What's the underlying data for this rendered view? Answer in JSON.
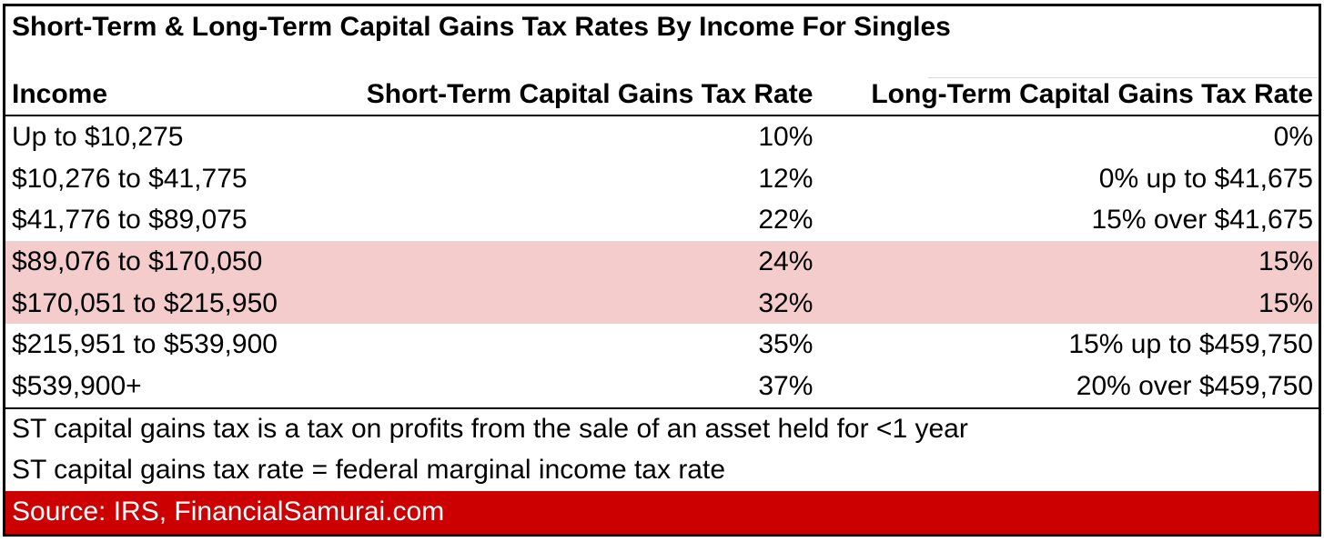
{
  "chart_data": {
    "type": "table",
    "title": "Short-Term & Long-Term Capital Gains Tax Rates By Income For Singles",
    "columns": [
      "Income",
      "Short-Term Capital Gains Tax Rate",
      "Long-Term Capital Gains Tax Rate"
    ],
    "rows": [
      [
        "Up to $10,275",
        "10%",
        "0%"
      ],
      [
        "$10,276 to $41,775",
        "12%",
        "0% up to $41,675"
      ],
      [
        "$41,776 to $89,075",
        "22%",
        "15% over $41,675"
      ],
      [
        "$89,076 to $170,050",
        "24%",
        "15%"
      ],
      [
        "$170,051 to $215,950",
        "32%",
        "15%"
      ],
      [
        "$215,951 to $539,900",
        "35%",
        "15% up to $459,750"
      ],
      [
        "$539,900+",
        "37%",
        "20% over $459,750"
      ]
    ],
    "highlighted_rows": [
      3,
      4
    ],
    "footnotes": [
      "ST capital gains tax is a tax on profits from the sale of an asset held for <1 year",
      "ST capital gains tax rate = federal marginal income tax rate"
    ],
    "source": "Source: IRS, FinancialSamurai.com"
  },
  "colors": {
    "highlight": "#F4CCCC",
    "source_bg": "#CC0000",
    "source_text": "#FFFFFF",
    "border": "#000000",
    "text": "#000000"
  }
}
